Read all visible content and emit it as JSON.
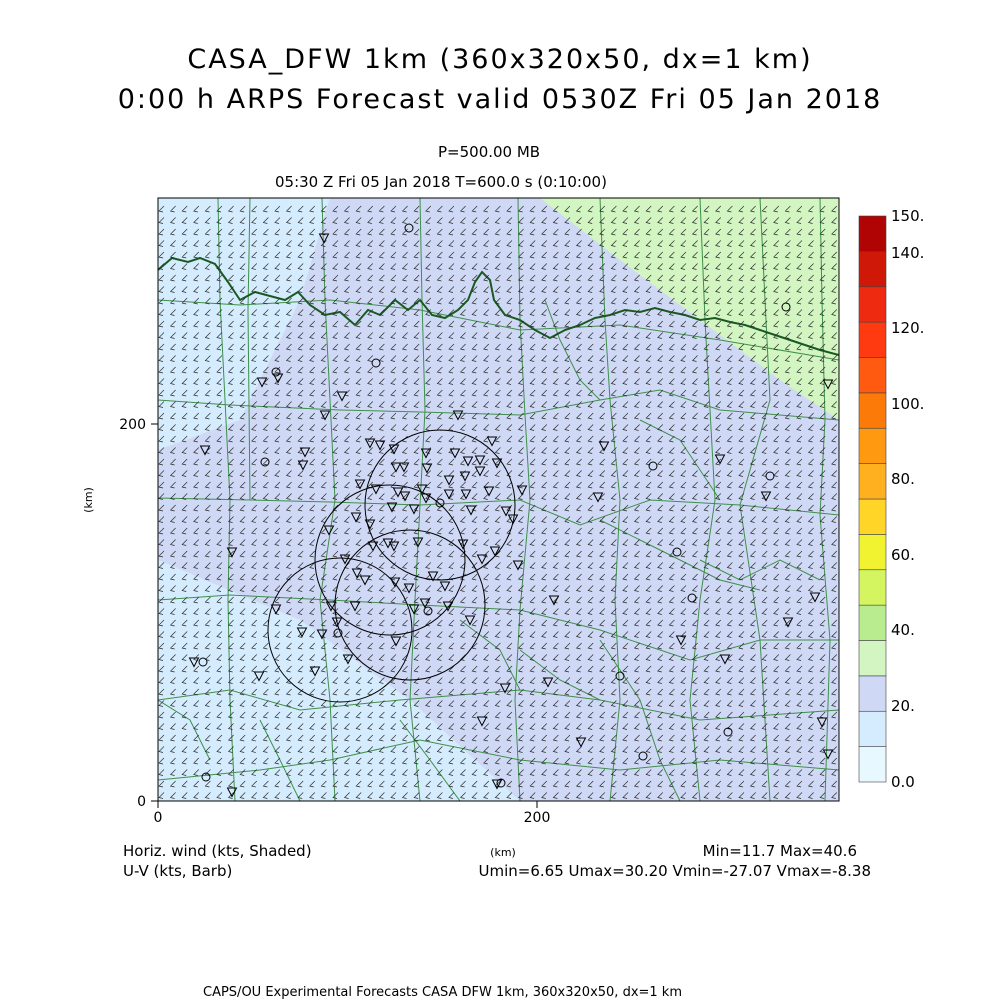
{
  "header": {
    "title_line1": "CASA_DFW 1km (360x320x50, dx=1 km)",
    "title_line2": "0:00 h ARPS Forecast valid 0530Z Fri 05 Jan 2018",
    "level": "P=500.00 MB",
    "time": "05:30 Z Fri 05 Jan 2018    T=600.0 s (0:10:00)"
  },
  "axes": {
    "x_label": "(km)",
    "y_label": "(km)",
    "x_ticks": [
      "0",
      "200"
    ],
    "y_ticks": [
      "0",
      "200"
    ],
    "x_range_km": [
      0,
      360
    ],
    "y_range_km": [
      0,
      320
    ]
  },
  "colorbar": {
    "labels": [
      "150.",
      "140.",
      "120.",
      "100.",
      "80.",
      "60.",
      "40.",
      "20.",
      "0.0"
    ],
    "bands": [
      {
        "from": 0,
        "to": 10,
        "color": "#e8f8ff"
      },
      {
        "from": 10,
        "to": 20,
        "color": "#d4ecfd"
      },
      {
        "from": 20,
        "to": 30,
        "color": "#cfd9f6"
      },
      {
        "from": 30,
        "to": 40,
        "color": "#d2f5c2"
      },
      {
        "from": 40,
        "to": 50,
        "color": "#b8ec8e"
      },
      {
        "from": 50,
        "to": 60,
        "color": "#d4f560"
      },
      {
        "from": 60,
        "to": 70,
        "color": "#f2f330"
      },
      {
        "from": 70,
        "to": 80,
        "color": "#ffd628"
      },
      {
        "from": 80,
        "to": 90,
        "color": "#ffb01e"
      },
      {
        "from": 90,
        "to": 100,
        "color": "#ff9a10"
      },
      {
        "from": 100,
        "to": 110,
        "color": "#fb7a08"
      },
      {
        "from": 110,
        "to": 120,
        "color": "#ff5a10"
      },
      {
        "from": 120,
        "to": 130,
        "color": "#ff3a10"
      },
      {
        "from": 130,
        "to": 140,
        "color": "#ee2a10"
      },
      {
        "from": 140,
        "to": 150,
        "color": "#d01808"
      },
      {
        "from": 150,
        "to": 160,
        "color": "#b00404"
      }
    ]
  },
  "footer": {
    "field_shaded": "Horiz. wind (kts, Shaded)",
    "field_barb": "U-V (kts, Barb)",
    "minmax": "Min=11.7 Max=40.6",
    "uv_minmax": "Umin=6.65 Umax=30.20 Vmin=-27.07 Vmax=-8.38",
    "credit": "CAPS/OU Experimental Forecasts  CASA DFW 1km, 360x320x50, dx=1 km"
  },
  "colors": {
    "county_lines": "#3f8f4a",
    "state_line": "#1a5a22",
    "barbs": "#2a2a2a"
  }
}
